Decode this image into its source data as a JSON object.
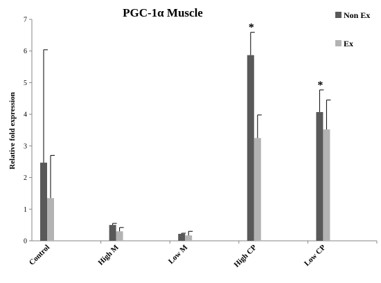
{
  "chart_data": {
    "type": "bar",
    "title": "PGC-1α Muscle",
    "ylabel": "Relative fold expression",
    "xlabel": "",
    "ylim": [
      0,
      7
    ],
    "yticks": [
      "0",
      "1",
      "2",
      "3",
      "4",
      "5",
      "6",
      "7"
    ],
    "categories": [
      "Control",
      "High M",
      "Low M",
      "High CP",
      "Low CP"
    ],
    "series": [
      {
        "name": "Non Ex",
        "color": "#595959",
        "values": [
          2.47,
          0.5,
          0.22,
          5.87,
          4.07
        ],
        "errors": [
          3.57,
          0.05,
          0.02,
          0.72,
          0.7
        ]
      },
      {
        "name": "Ex",
        "color": "#b3b3b3",
        "values": [
          1.35,
          0.3,
          0.17,
          3.25,
          3.52
        ],
        "errors": [
          1.35,
          0.12,
          0.13,
          0.73,
          0.93
        ]
      }
    ],
    "annotations": [
      {
        "category": "High CP",
        "series": "Non Ex",
        "text": "*"
      },
      {
        "category": "Low CP",
        "series": "Non Ex",
        "text": "*"
      }
    ],
    "legend_position": "top-right",
    "grid": false
  }
}
